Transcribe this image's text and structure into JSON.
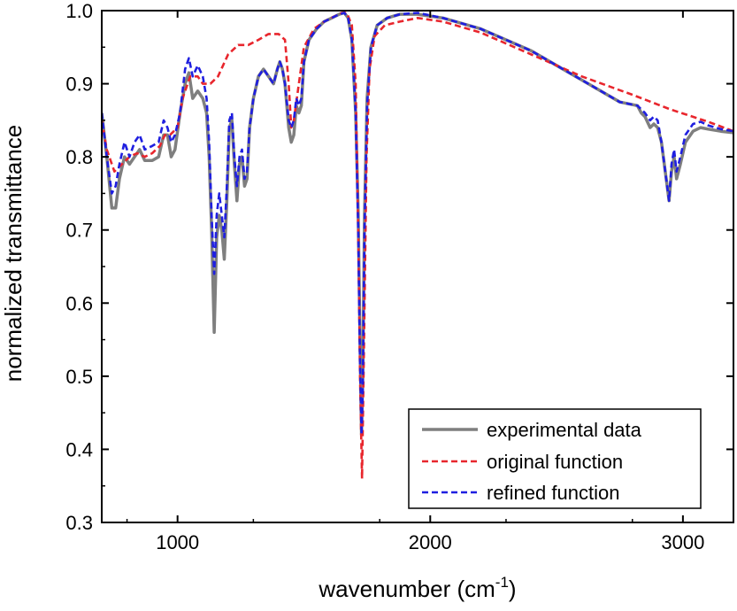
{
  "chart_data": {
    "type": "line",
    "title": "",
    "xlabel": "wavenumber (cm",
    "xlabel_sup": "-1",
    "xlabel_close": ")",
    "ylabel": "normalized transmittance",
    "xlim": [
      700,
      3200
    ],
    "ylim": [
      0.3,
      1.0
    ],
    "x_ticks": [
      1000,
      2000,
      3000
    ],
    "y_ticks": [
      0.3,
      0.4,
      0.5,
      0.6,
      0.7,
      0.8,
      0.9,
      1.0
    ],
    "x_tick_labels": [
      "1000",
      "2000",
      "3000"
    ],
    "y_tick_labels": [
      "0.3",
      "0.4",
      "0.5",
      "0.6",
      "0.7",
      "0.8",
      "0.9",
      "1.0"
    ],
    "legend_position": "bottom-right",
    "series": [
      {
        "name": "experimental data",
        "color": "#7f7f7f",
        "style": "solid",
        "points": [
          [
            700,
            0.86
          ],
          [
            720,
            0.8
          ],
          [
            740,
            0.73
          ],
          [
            755,
            0.73
          ],
          [
            770,
            0.77
          ],
          [
            790,
            0.8
          ],
          [
            810,
            0.79
          ],
          [
            830,
            0.8
          ],
          [
            850,
            0.81
          ],
          [
            870,
            0.795
          ],
          [
            900,
            0.795
          ],
          [
            925,
            0.8
          ],
          [
            945,
            0.83
          ],
          [
            960,
            0.83
          ],
          [
            975,
            0.8
          ],
          [
            990,
            0.81
          ],
          [
            1010,
            0.86
          ],
          [
            1030,
            0.9
          ],
          [
            1045,
            0.915
          ],
          [
            1060,
            0.88
          ],
          [
            1080,
            0.89
          ],
          [
            1100,
            0.88
          ],
          [
            1115,
            0.86
          ],
          [
            1125,
            0.8
          ],
          [
            1135,
            0.7
          ],
          [
            1145,
            0.56
          ],
          [
            1155,
            0.69
          ],
          [
            1165,
            0.72
          ],
          [
            1175,
            0.7
          ],
          [
            1185,
            0.66
          ],
          [
            1195,
            0.74
          ],
          [
            1205,
            0.84
          ],
          [
            1215,
            0.85
          ],
          [
            1225,
            0.79
          ],
          [
            1235,
            0.74
          ],
          [
            1245,
            0.79
          ],
          [
            1255,
            0.8
          ],
          [
            1265,
            0.76
          ],
          [
            1275,
            0.77
          ],
          [
            1285,
            0.84
          ],
          [
            1300,
            0.88
          ],
          [
            1320,
            0.91
          ],
          [
            1340,
            0.92
          ],
          [
            1360,
            0.91
          ],
          [
            1380,
            0.9
          ],
          [
            1395,
            0.92
          ],
          [
            1405,
            0.93
          ],
          [
            1415,
            0.92
          ],
          [
            1425,
            0.9
          ],
          [
            1440,
            0.84
          ],
          [
            1450,
            0.82
          ],
          [
            1460,
            0.83
          ],
          [
            1470,
            0.87
          ],
          [
            1480,
            0.86
          ],
          [
            1490,
            0.87
          ],
          [
            1500,
            0.93
          ],
          [
            1520,
            0.96
          ],
          [
            1550,
            0.975
          ],
          [
            1580,
            0.985
          ],
          [
            1610,
            0.99
          ],
          [
            1640,
            0.995
          ],
          [
            1660,
            0.997
          ],
          [
            1675,
            0.99
          ],
          [
            1690,
            0.96
          ],
          [
            1705,
            0.86
          ],
          [
            1715,
            0.72
          ],
          [
            1722,
            0.55
          ],
          [
            1728,
            0.42
          ],
          [
            1733,
            0.5
          ],
          [
            1740,
            0.72
          ],
          [
            1750,
            0.88
          ],
          [
            1765,
            0.95
          ],
          [
            1790,
            0.98
          ],
          [
            1830,
            0.99
          ],
          [
            1880,
            0.995
          ],
          [
            1950,
            0.995
          ],
          [
            2050,
            0.99
          ],
          [
            2200,
            0.975
          ],
          [
            2400,
            0.945
          ],
          [
            2600,
            0.905
          ],
          [
            2750,
            0.875
          ],
          [
            2820,
            0.87
          ],
          [
            2835,
            0.86
          ],
          [
            2850,
            0.855
          ],
          [
            2870,
            0.84
          ],
          [
            2885,
            0.845
          ],
          [
            2900,
            0.84
          ],
          [
            2915,
            0.82
          ],
          [
            2930,
            0.78
          ],
          [
            2945,
            0.74
          ],
          [
            2955,
            0.78
          ],
          [
            2965,
            0.8
          ],
          [
            2975,
            0.77
          ],
          [
            2990,
            0.79
          ],
          [
            3010,
            0.82
          ],
          [
            3040,
            0.835
          ],
          [
            3070,
            0.84
          ],
          [
            3100,
            0.838
          ],
          [
            3150,
            0.835
          ],
          [
            3200,
            0.833
          ]
        ]
      },
      {
        "name": "original function",
        "color": "#e8262d",
        "style": "dashed",
        "points": [
          [
            700,
            0.85
          ],
          [
            720,
            0.81
          ],
          [
            750,
            0.78
          ],
          [
            780,
            0.79
          ],
          [
            810,
            0.8
          ],
          [
            840,
            0.805
          ],
          [
            870,
            0.8
          ],
          [
            900,
            0.805
          ],
          [
            930,
            0.815
          ],
          [
            950,
            0.83
          ],
          [
            970,
            0.83
          ],
          [
            1000,
            0.84
          ],
          [
            1020,
            0.88
          ],
          [
            1050,
            0.91
          ],
          [
            1080,
            0.91
          ],
          [
            1100,
            0.9
          ],
          [
            1130,
            0.9
          ],
          [
            1160,
            0.91
          ],
          [
            1200,
            0.94
          ],
          [
            1240,
            0.953
          ],
          [
            1280,
            0.953
          ],
          [
            1320,
            0.96
          ],
          [
            1360,
            0.968
          ],
          [
            1400,
            0.968
          ],
          [
            1425,
            0.96
          ],
          [
            1440,
            0.9
          ],
          [
            1450,
            0.84
          ],
          [
            1460,
            0.85
          ],
          [
            1480,
            0.9
          ],
          [
            1500,
            0.95
          ],
          [
            1540,
            0.975
          ],
          [
            1580,
            0.985
          ],
          [
            1620,
            0.992
          ],
          [
            1650,
            0.997
          ],
          [
            1670,
            0.997
          ],
          [
            1690,
            0.98
          ],
          [
            1705,
            0.9
          ],
          [
            1715,
            0.7
          ],
          [
            1722,
            0.5
          ],
          [
            1730,
            0.36
          ],
          [
            1738,
            0.55
          ],
          [
            1748,
            0.8
          ],
          [
            1760,
            0.92
          ],
          [
            1780,
            0.965
          ],
          [
            1820,
            0.98
          ],
          [
            1880,
            0.985
          ],
          [
            1950,
            0.99
          ],
          [
            2050,
            0.985
          ],
          [
            2200,
            0.97
          ],
          [
            2400,
            0.94
          ],
          [
            2600,
            0.91
          ],
          [
            2800,
            0.885
          ],
          [
            2950,
            0.865
          ],
          [
            3100,
            0.848
          ],
          [
            3200,
            0.835
          ]
        ]
      },
      {
        "name": "refined function",
        "color": "#1f1fe0",
        "style": "dashed",
        "points": [
          [
            700,
            0.86
          ],
          [
            720,
            0.8
          ],
          [
            740,
            0.75
          ],
          [
            755,
            0.76
          ],
          [
            770,
            0.79
          ],
          [
            790,
            0.82
          ],
          [
            810,
            0.8
          ],
          [
            830,
            0.82
          ],
          [
            850,
            0.83
          ],
          [
            870,
            0.81
          ],
          [
            900,
            0.815
          ],
          [
            925,
            0.82
          ],
          [
            945,
            0.85
          ],
          [
            960,
            0.84
          ],
          [
            975,
            0.82
          ],
          [
            990,
            0.83
          ],
          [
            1010,
            0.86
          ],
          [
            1030,
            0.92
          ],
          [
            1045,
            0.935
          ],
          [
            1060,
            0.91
          ],
          [
            1080,
            0.925
          ],
          [
            1100,
            0.91
          ],
          [
            1115,
            0.88
          ],
          [
            1125,
            0.82
          ],
          [
            1135,
            0.72
          ],
          [
            1145,
            0.64
          ],
          [
            1155,
            0.72
          ],
          [
            1165,
            0.75
          ],
          [
            1175,
            0.72
          ],
          [
            1185,
            0.69
          ],
          [
            1195,
            0.76
          ],
          [
            1205,
            0.85
          ],
          [
            1215,
            0.86
          ],
          [
            1225,
            0.8
          ],
          [
            1235,
            0.76
          ],
          [
            1245,
            0.8
          ],
          [
            1255,
            0.81
          ],
          [
            1265,
            0.77
          ],
          [
            1275,
            0.78
          ],
          [
            1285,
            0.84
          ],
          [
            1300,
            0.88
          ],
          [
            1320,
            0.91
          ],
          [
            1340,
            0.92
          ],
          [
            1360,
            0.91
          ],
          [
            1380,
            0.9
          ],
          [
            1395,
            0.92
          ],
          [
            1405,
            0.93
          ],
          [
            1415,
            0.92
          ],
          [
            1425,
            0.9
          ],
          [
            1440,
            0.85
          ],
          [
            1450,
            0.84
          ],
          [
            1460,
            0.85
          ],
          [
            1470,
            0.88
          ],
          [
            1480,
            0.87
          ],
          [
            1490,
            0.88
          ],
          [
            1500,
            0.93
          ],
          [
            1520,
            0.96
          ],
          [
            1550,
            0.975
          ],
          [
            1580,
            0.985
          ],
          [
            1610,
            0.99
          ],
          [
            1640,
            0.995
          ],
          [
            1660,
            0.997
          ],
          [
            1675,
            0.99
          ],
          [
            1690,
            0.96
          ],
          [
            1705,
            0.86
          ],
          [
            1715,
            0.7
          ],
          [
            1722,
            0.52
          ],
          [
            1728,
            0.42
          ],
          [
            1733,
            0.48
          ],
          [
            1740,
            0.7
          ],
          [
            1750,
            0.87
          ],
          [
            1765,
            0.95
          ],
          [
            1790,
            0.98
          ],
          [
            1830,
            0.99
          ],
          [
            1880,
            0.995
          ],
          [
            1950,
            0.997
          ],
          [
            2050,
            0.99
          ],
          [
            2200,
            0.975
          ],
          [
            2400,
            0.945
          ],
          [
            2600,
            0.905
          ],
          [
            2750,
            0.875
          ],
          [
            2820,
            0.87
          ],
          [
            2835,
            0.865
          ],
          [
            2850,
            0.86
          ],
          [
            2870,
            0.85
          ],
          [
            2885,
            0.855
          ],
          [
            2900,
            0.85
          ],
          [
            2915,
            0.82
          ],
          [
            2930,
            0.78
          ],
          [
            2945,
            0.74
          ],
          [
            2955,
            0.79
          ],
          [
            2965,
            0.81
          ],
          [
            2975,
            0.78
          ],
          [
            2990,
            0.8
          ],
          [
            3010,
            0.83
          ],
          [
            3040,
            0.845
          ],
          [
            3070,
            0.848
          ],
          [
            3100,
            0.843
          ],
          [
            3150,
            0.838
          ],
          [
            3200,
            0.835
          ]
        ]
      }
    ]
  }
}
